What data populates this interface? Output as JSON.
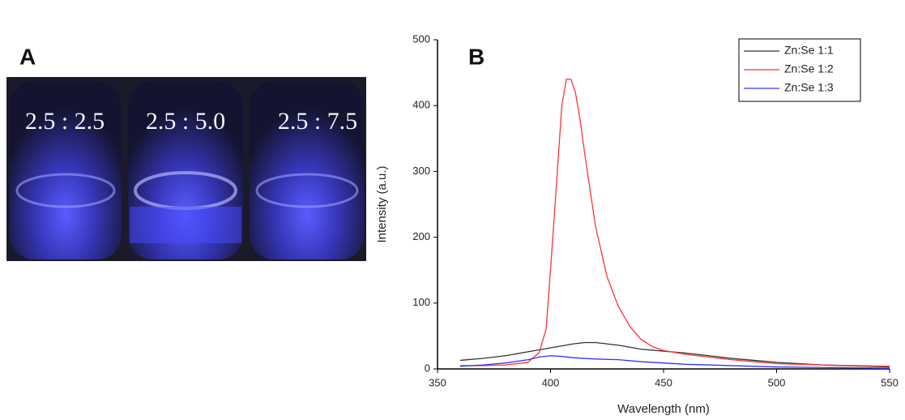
{
  "panel_a": {
    "label": "A",
    "vial_labels": [
      "2.5 : 2.5",
      "2.5 : 5.0",
      "2.5 : 7.5"
    ]
  },
  "chart_data": {
    "type": "line",
    "panel_label": "B",
    "xlabel": "Wavelength (nm)",
    "ylabel": "Intensity (a.u.)",
    "xlim": [
      350,
      550
    ],
    "xticks": [
      350,
      400,
      450,
      500,
      550
    ],
    "ylim": [
      0,
      500
    ],
    "yticks": [
      0,
      100,
      200,
      300,
      400,
      500
    ],
    "legend": "upper right",
    "series": [
      {
        "name": "Zn:Se 1:1",
        "color": "#333333",
        "x": [
          360,
          370,
          380,
          390,
          400,
          410,
          415,
          420,
          430,
          440,
          450,
          460,
          470,
          480,
          490,
          500,
          510,
          520,
          530,
          540,
          550
        ],
        "values": [
          13,
          16,
          20,
          26,
          32,
          38,
          40,
          40,
          36,
          30,
          27,
          24,
          20,
          16,
          13,
          10,
          8,
          6,
          5,
          4,
          3
        ]
      },
      {
        "name": "Zn:Se 1:2",
        "color": "#ff3333",
        "x": [
          360,
          370,
          380,
          390,
          395,
          398,
          400,
          403,
          405,
          407,
          409,
          411,
          413,
          415,
          418,
          420,
          425,
          430,
          435,
          440,
          445,
          450,
          460,
          470,
          480,
          490,
          500,
          520,
          550
        ],
        "values": [
          5,
          5,
          6,
          10,
          25,
          60,
          150,
          300,
          400,
          440,
          440,
          420,
          380,
          330,
          260,
          215,
          140,
          95,
          65,
          45,
          34,
          28,
          22,
          18,
          14,
          11,
          8,
          6,
          4
        ]
      },
      {
        "name": "Zn:Se 1:3",
        "color": "#3333ff",
        "x": [
          360,
          370,
          380,
          390,
          395,
          400,
          405,
          410,
          420,
          430,
          440,
          450,
          460,
          480,
          500,
          550
        ],
        "values": [
          4,
          6,
          9,
          14,
          18,
          20,
          19,
          17,
          15,
          14,
          11,
          9,
          7,
          5,
          3,
          1
        ]
      }
    ]
  }
}
